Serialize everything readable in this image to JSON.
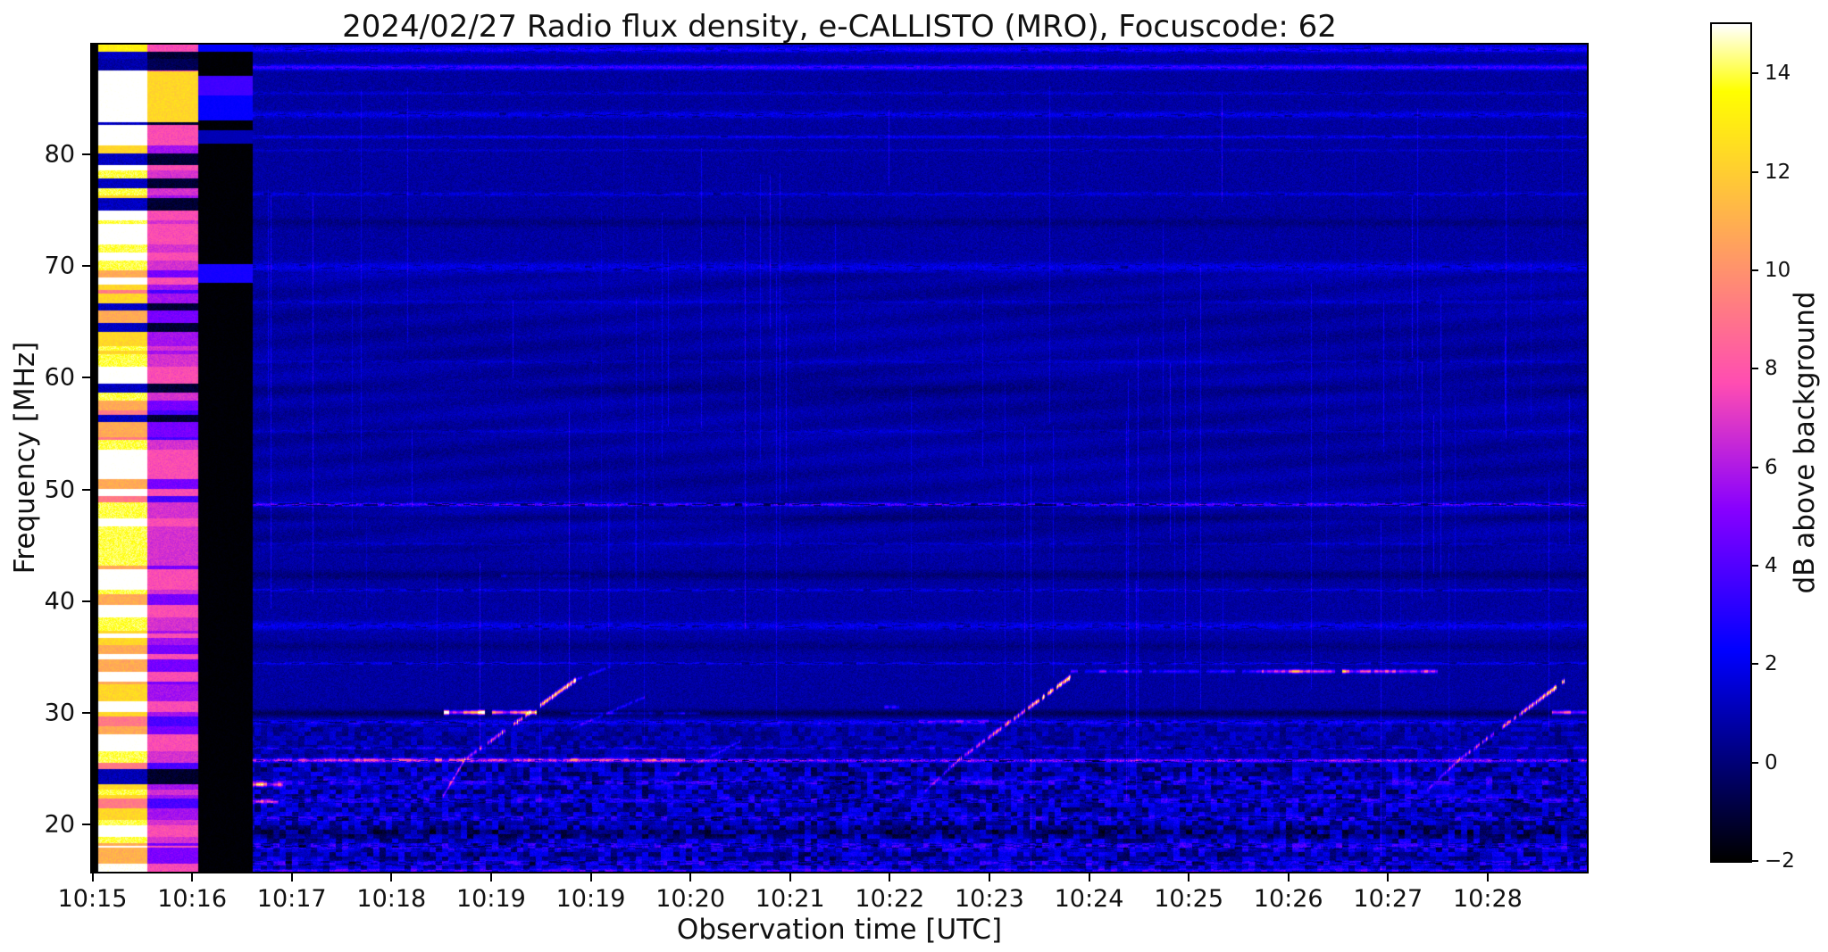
{
  "title": "2024/02/27  Radio flux density, e-CALLISTO (MRO), Focuscode: 62",
  "chart_data": {
    "type": "heatmap",
    "title": "2024/02/27  Radio flux density, e-CALLISTO (MRO), Focuscode: 62",
    "xlabel": "Observation time [UTC]",
    "ylabel": "Frequency [MHz]",
    "colorbar_label": "dB above background",
    "colormap": "gnuplot2",
    "grid": false,
    "x_tick_labels": [
      "10:15",
      "10:16",
      "10:17",
      "10:18",
      "10:19",
      "10:19",
      "10:20",
      "10:21",
      "10:22",
      "10:23",
      "10:24",
      "10:25",
      "10:26",
      "10:27",
      "10:28"
    ],
    "x_minutes_span": 15,
    "y_tick_values": [
      80,
      70,
      60,
      50,
      40,
      30,
      20
    ],
    "freq_range_mhz": [
      15.8,
      89.8
    ],
    "colorbar_tick_labels": [
      "14",
      "12",
      "10",
      "8",
      "6",
      "4",
      "2",
      "0",
      "−2"
    ],
    "colorbar_tick_values": [
      14,
      12,
      10,
      8,
      6,
      4,
      2,
      0,
      -2
    ],
    "value_range_db": [
      -2,
      15
    ],
    "noise_floor_db": 0.55,
    "features": {
      "calibration_columns": [
        {
          "name": "saturated-calibration-band",
          "t0": 0.06,
          "t1": 0.55,
          "level_db": 15
        },
        {
          "name": "attenuated-calibration-band",
          "t0": 0.55,
          "t1": 1.06,
          "level_db": 6
        },
        {
          "name": "blanked-gap",
          "t0": 1.06,
          "t1": 1.6,
          "level_db": -2
        }
      ],
      "rfi_lines": [
        {
          "f": 89.4,
          "s": 1.0,
          "w": 4,
          "dash": 1,
          "gap": 0.1
        },
        {
          "f": 87.8,
          "s": 2.4,
          "w": 3,
          "dash": 0.5,
          "gap": 0.05
        },
        {
          "f": 85.5,
          "s": 0.6,
          "w": 2,
          "dash": 1,
          "gap": 0.1
        },
        {
          "f": 83.6,
          "s": 0.9,
          "w": 4,
          "dash": 1,
          "gap": 0.1
        },
        {
          "f": 81.6,
          "s": 1.2,
          "w": 1.8,
          "dash": 0.8,
          "gap": 0.08
        },
        {
          "f": 80.4,
          "s": 0.5,
          "w": 1.5,
          "dash": 1,
          "gap": 0.1
        },
        {
          "f": 76.5,
          "s": 0.8,
          "w": 2.2,
          "dash": 1,
          "gap": 0.15
        },
        {
          "f": 73.9,
          "s": -0.55,
          "w": 5,
          "dash": 0,
          "gap": 0
        },
        {
          "f": 69.9,
          "s": 0.85,
          "w": 6,
          "dash": 1,
          "gap": 0.1
        },
        {
          "f": 66.8,
          "s": 0.5,
          "w": 2,
          "dash": 1,
          "gap": 0.1
        },
        {
          "f": 61.5,
          "s": 0.45,
          "w": 2,
          "dash": 1,
          "gap": 0.2
        },
        {
          "f": 59.0,
          "s": -0.4,
          "w": 6,
          "dash": 0,
          "gap": 0
        },
        {
          "f": 55.2,
          "s": 0.45,
          "w": 2,
          "dash": 1,
          "gap": 0.2
        },
        {
          "f": 48.7,
          "s": 2.3,
          "w": 2.2,
          "dash": 1,
          "gap": 0.3
        },
        {
          "f": 47.5,
          "s": -0.5,
          "w": 4,
          "dash": 0,
          "gap": 0
        },
        {
          "f": 45.2,
          "s": 0.55,
          "w": 1.5,
          "dash": 1,
          "gap": 0.25
        },
        {
          "f": 42.4,
          "s": -0.7,
          "w": 5,
          "dash": 0,
          "gap": 0
        },
        {
          "f": 41.0,
          "s": 0.9,
          "w": 1.8,
          "dash": 1,
          "gap": 0.25
        },
        {
          "f": 37.8,
          "s": 0.95,
          "w": 5,
          "dash": 1,
          "gap": 0.12
        },
        {
          "f": 36.0,
          "s": -0.5,
          "w": 5,
          "dash": 0,
          "gap": 0
        },
        {
          "f": 34.5,
          "s": 1.1,
          "w": 1.5,
          "dash": 1,
          "gap": 0.3
        },
        {
          "f": 30.0,
          "s": -1.2,
          "w": 4,
          "dash": 0,
          "gap": 0
        },
        {
          "f": 29.2,
          "s": 1.2,
          "w": 3,
          "dash": 1,
          "gap": 0.15
        },
        {
          "f": 26.9,
          "s": 1.3,
          "w": 1.5,
          "dash": 1,
          "gap": 0.35
        },
        {
          "f": 25.8,
          "s": 3.0,
          "w": 2.2,
          "dash": 1,
          "gap": 0.12
        },
        {
          "f": 23.9,
          "s": 1.2,
          "w": 4,
          "dash": 1,
          "gap": 0.25
        },
        {
          "f": 22.3,
          "s": 1.1,
          "w": 5,
          "dash": 1,
          "gap": 0.3
        },
        {
          "f": 20.7,
          "s": 1.0,
          "w": 4,
          "dash": 1,
          "gap": 0.3
        },
        {
          "f": 19.4,
          "s": -0.9,
          "w": 5,
          "dash": 0,
          "gap": 0
        },
        {
          "f": 18.1,
          "s": 1.3,
          "w": 5,
          "dash": 1,
          "gap": 0.3
        },
        {
          "f": 16.6,
          "s": 1.1,
          "w": 4,
          "dash": 1,
          "gap": 0.3
        },
        {
          "f": 15.95,
          "s": 2.0,
          "w": 2,
          "dash": 0.5,
          "gap": 0.1
        }
      ],
      "bright_segments": [
        {
          "t0": 3.53,
          "t1": 4.46,
          "f": 30.05,
          "s": 9.5,
          "w": 2.2,
          "dash": 0.3
        },
        {
          "t0": 14.65,
          "t1": 15.0,
          "f": 30.05,
          "s": 8.5,
          "w": 2.2,
          "dash": 0.3
        },
        {
          "t0": 4.8,
          "t1": 6.1,
          "f": 30.0,
          "s": 1.8,
          "w": 1.5,
          "dash": 1
        },
        {
          "t0": 9.73,
          "t1": 11.74,
          "f": 33.75,
          "s": 2.2,
          "w": 1.8,
          "dash": 1
        },
        {
          "t0": 11.74,
          "t1": 13.5,
          "f": 33.75,
          "s": 6.0,
          "w": 2.0,
          "dash": 0.6
        },
        {
          "t0": 1.6,
          "t1": 5.97,
          "f": 25.85,
          "s": 3.0,
          "w": 2.0,
          "dash": 0.8
        },
        {
          "t0": 1.6,
          "t1": 1.92,
          "f": 23.6,
          "s": 5.5,
          "w": 2.2,
          "dash": 0.4
        },
        {
          "t0": 1.6,
          "t1": 1.87,
          "f": 22.1,
          "s": 4.5,
          "w": 2.0,
          "dash": 0.5
        },
        {
          "t0": 8.3,
          "t1": 9.0,
          "f": 29.3,
          "s": 2.0,
          "w": 2.0,
          "dash": 1
        },
        {
          "t0": 4.1,
          "t1": 4.9,
          "f": 42.3,
          "s": 0.9,
          "w": 1.5,
          "dash": 1
        },
        {
          "t0": 7.95,
          "t1": 8.1,
          "f": 30.6,
          "s": 2.5,
          "w": 2.0,
          "dash": 0.4
        }
      ],
      "type3_bursts": [
        {
          "t0": 3.74,
          "f0": 25.9,
          "t1": 4.85,
          "f1": 33.0,
          "w": 2.3,
          "i0": 4.0,
          "i1": 12.0
        },
        {
          "t0": 3.52,
          "f0": 22.6,
          "t1": 3.74,
          "f1": 25.9,
          "w": 1.8,
          "i0": 2.0,
          "i1": 3.5
        },
        {
          "t0": 4.85,
          "f0": 33.0,
          "t1": 5.2,
          "f1": 34.2,
          "w": 1.6,
          "i0": 2.5,
          "i1": 1.5
        },
        {
          "t0": 8.7,
          "f0": 25.9,
          "t1": 9.82,
          "f1": 33.3,
          "w": 2.3,
          "i0": 3.5,
          "i1": 12.5
        },
        {
          "t0": 8.35,
          "f0": 23.0,
          "t1": 8.7,
          "f1": 25.9,
          "w": 1.8,
          "i0": 1.8,
          "i1": 3.0
        },
        {
          "t0": 13.72,
          "f0": 25.9,
          "t1": 14.8,
          "f1": 33.1,
          "w": 2.3,
          "i0": 3.5,
          "i1": 11.5
        },
        {
          "t0": 13.4,
          "f0": 23.2,
          "t1": 13.72,
          "f1": 25.9,
          "w": 1.8,
          "i0": 1.8,
          "i1": 3.0
        },
        {
          "t0": 4.8,
          "f0": 28.6,
          "t1": 5.55,
          "f1": 31.5,
          "w": 1.5,
          "i0": 1.6,
          "i1": 2.2
        },
        {
          "t0": 5.85,
          "f0": 24.5,
          "t1": 6.5,
          "f1": 27.5,
          "w": 1.5,
          "i0": 1.5,
          "i1": 2.2
        }
      ]
    }
  }
}
